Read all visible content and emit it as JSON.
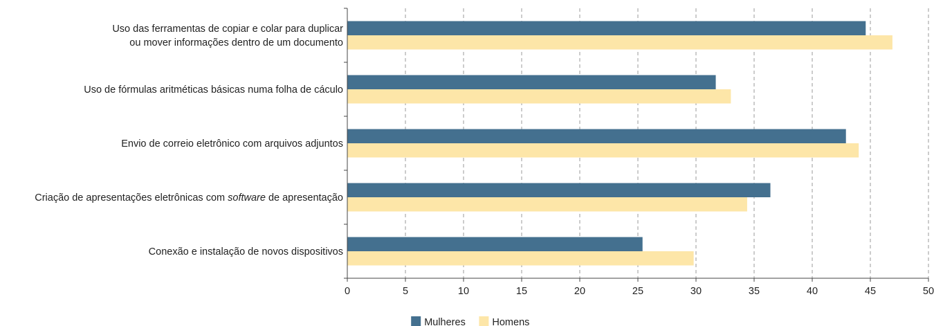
{
  "chart_data": {
    "type": "bar",
    "orientation": "horizontal",
    "categories": [
      {
        "lines": [
          [
            {
              "text": "Uso das ferramentas de copiar e colar para duplicar",
              "italic": false
            }
          ],
          [
            {
              "text": "ou mover informações dentro de um documento",
              "italic": false
            }
          ]
        ]
      },
      {
        "lines": [
          [
            {
              "text": "Uso de fórmulas aritméticas básicas numa folha de cáculo",
              "italic": false
            }
          ]
        ]
      },
      {
        "lines": [
          [
            {
              "text": "Envio de correio eletrônico com arquivos adjuntos",
              "italic": false
            }
          ]
        ]
      },
      {
        "lines": [
          [
            {
              "text": "Criação de apresentações eletrônicas com ",
              "italic": false
            },
            {
              "text": "software",
              "italic": true
            },
            {
              "text": " de apresentação",
              "italic": false
            }
          ]
        ]
      },
      {
        "lines": [
          [
            {
              "text": "Conexão e instalação de novos dispositivos",
              "italic": false
            }
          ]
        ]
      }
    ],
    "series": [
      {
        "name": "Mulheres",
        "color": "#44708f",
        "values": [
          44.6,
          31.7,
          42.9,
          36.4,
          25.4
        ]
      },
      {
        "name": "Homens",
        "color": "#fde6a8",
        "values": [
          46.9,
          33.0,
          44.0,
          34.4,
          29.8
        ]
      }
    ],
    "xlim": [
      0,
      50
    ],
    "xticks": [
      0,
      5,
      10,
      15,
      20,
      25,
      30,
      35,
      40,
      45,
      50
    ],
    "grid": "vertical-dashed",
    "legend_position": "bottom-center",
    "title": "",
    "xlabel": "",
    "ylabel": ""
  }
}
